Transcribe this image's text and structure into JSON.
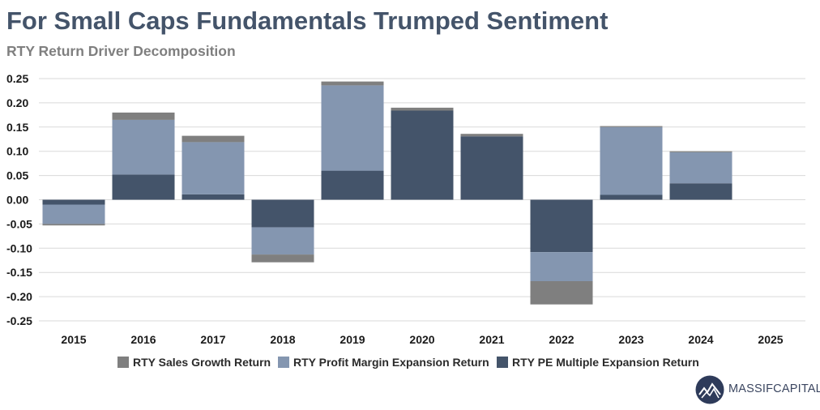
{
  "header": {
    "title": "For Small Caps Fundamentals Trumped Sentiment",
    "subtitle": "RTY Return Driver Decomposition"
  },
  "brand": {
    "logo_text": "MASSIFCAPITAL",
    "logo_color": "#2e3b5a"
  },
  "colors": {
    "sales": "#7f7f7f",
    "margin": "#8496b0",
    "pe": "#44546a",
    "grid": "#d9d9d9"
  },
  "chart_data": {
    "type": "bar",
    "stacked": true,
    "title": "For Small Caps Fundamentals Trumped Sentiment",
    "subtitle": "RTY Return Driver Decomposition",
    "xlabel": "",
    "ylabel": "",
    "categories": [
      "2015",
      "2016",
      "2017",
      "2018",
      "2019",
      "2020",
      "2021",
      "2022",
      "2023",
      "2024",
      "2025"
    ],
    "ylim": [
      -0.25,
      0.25
    ],
    "yticks": [
      "0.25",
      "0.20",
      "0.15",
      "0.10",
      "0.05",
      "0.00",
      "-0.05",
      "-0.10",
      "-0.15",
      "-0.20",
      "-0.25"
    ],
    "grid": true,
    "legend_position": "bottom",
    "series": [
      {
        "name": "RTY PE Multiple Expansion Return",
        "color": "#44546a",
        "values": [
          -0.01,
          0.052,
          0.011,
          -0.057,
          0.06,
          0.184,
          0.131,
          -0.108,
          0.01,
          0.034,
          null
        ]
      },
      {
        "name": "RTY Profit Margin Expansion Return",
        "color": "#8496b0",
        "values": [
          -0.04,
          0.113,
          0.108,
          -0.056,
          0.176,
          0.0,
          0.0,
          -0.06,
          0.14,
          0.064,
          null
        ]
      },
      {
        "name": "RTY Sales Growth Return",
        "color": "#7f7f7f",
        "values": [
          -0.003,
          0.015,
          0.013,
          -0.016,
          0.008,
          0.006,
          0.005,
          -0.048,
          0.002,
          0.002,
          null
        ]
      }
    ],
    "legend": [
      {
        "name": "RTY Sales Growth Return",
        "color": "#7f7f7f"
      },
      {
        "name": "RTY Profit Margin Expansion Return",
        "color": "#8496b0"
      },
      {
        "name": "RTY PE Multiple Expansion Return",
        "color": "#44546a"
      }
    ]
  }
}
